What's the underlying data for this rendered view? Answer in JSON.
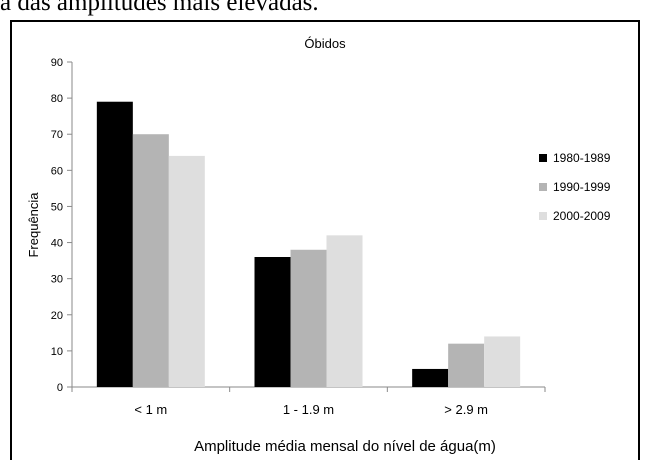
{
  "page": {
    "top_text": "a das amplitudes mais elevadas."
  },
  "chart_data": {
    "type": "bar",
    "title": "Óbidos",
    "xlabel": "Amplitude média mensal do nível de água(m)",
    "ylabel": "Frequência",
    "categories": [
      "< 1 m",
      "1 - 1.9 m",
      "> 2.9 m"
    ],
    "series": [
      {
        "name": "1980-1989",
        "color": "#000000",
        "values": [
          79,
          36,
          5
        ]
      },
      {
        "name": "1990-1999",
        "color": "#b4b4b4",
        "values": [
          70,
          38,
          12
        ]
      },
      {
        "name": "2000-2009",
        "color": "#dedede",
        "values": [
          64,
          42,
          14
        ]
      }
    ],
    "ylim": [
      0,
      90
    ],
    "yticks": [
      0,
      10,
      20,
      30,
      40,
      50,
      60,
      70,
      80,
      90
    ],
    "grid": false,
    "legend_position": "right"
  }
}
